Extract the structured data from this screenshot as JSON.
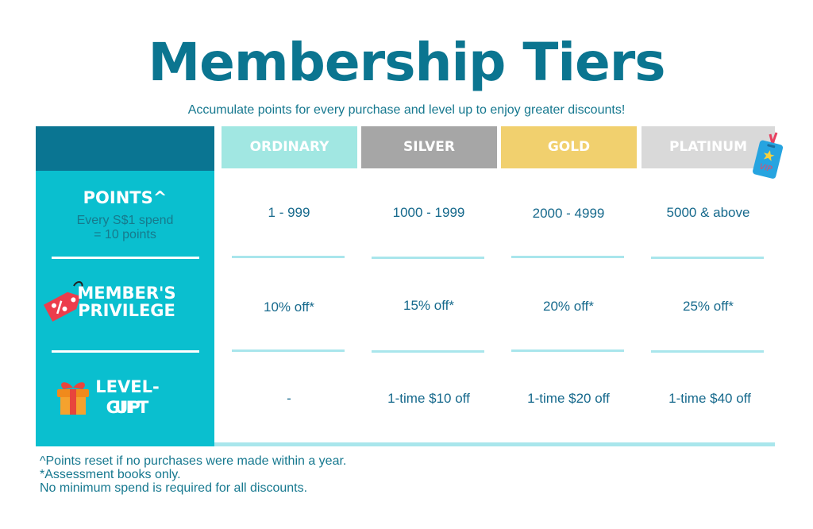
{
  "header": {
    "title": "Membership Tiers",
    "subtitle": "Accumulate points for every purchase and level up to enjoy greater discounts!"
  },
  "sidebar": {
    "points": {
      "label": "POINTS^",
      "sub_line1": "Every S$1 spend",
      "sub_line2": "= 10 points",
      "icon": "none"
    },
    "privilege": {
      "line1": "MEMBER'S",
      "line2": "PRIVILEGE",
      "icon": "discount-tag-icon"
    },
    "gift": {
      "line1": "LEVEL-UP",
      "line2": "GIFT",
      "icon": "gift-box-icon"
    }
  },
  "tiers": [
    {
      "name": "ORDINARY",
      "color": "#a1e7e2",
      "points": "1 - 999",
      "privilege": "10% off*",
      "gift": "-"
    },
    {
      "name": "SILVER",
      "color": "#a6a6a6",
      "points": "1000 - 1999",
      "privilege": "15% off*",
      "gift": "1-time $10 off"
    },
    {
      "name": "GOLD",
      "color": "#f1d06e",
      "points": "2000 - 4999",
      "privilege": "20% off*",
      "gift": "1-time $20 off"
    },
    {
      "name": "PLATINUM",
      "color": "#d9d9d9",
      "points": "5000 & above",
      "privilege": "25% off*",
      "gift": "1-time $40 off"
    }
  ],
  "vip_badge": {
    "text": "VIP",
    "icon": "vip-badge-icon"
  },
  "footnotes": [
    "^Points reset if no purchases were made within a year.",
    "*Assessment books only.",
    "No minimum spend is required for all discounts."
  ],
  "colors": {
    "title": "#0b7590",
    "sidebar_dark": "#0a7592",
    "sidebar_teal": "#0abfcf",
    "divider_light": "#a9e6ec"
  }
}
